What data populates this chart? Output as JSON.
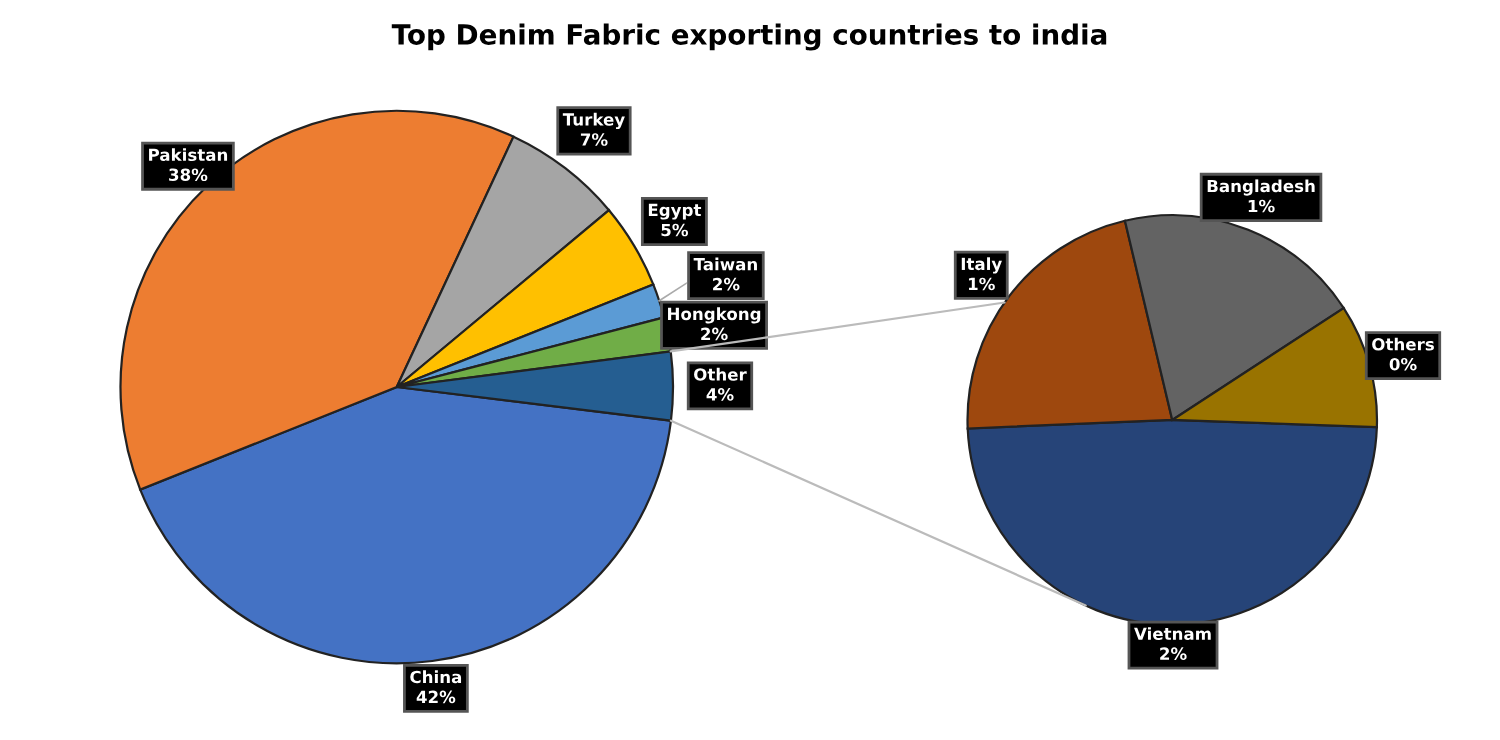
{
  "chart_data": [
    {
      "type": "pie",
      "title": "Top Denim Fabric exporting countries to india",
      "categories": [
        "China",
        "Pakistan",
        "Turkey",
        "Egypt",
        "Taiwan",
        "Hongkong",
        "Other"
      ],
      "values": [
        42,
        38,
        7,
        5,
        2,
        2,
        4
      ],
      "colors": [
        "#4472c4",
        "#ed7d31",
        "#a5a5a5",
        "#ffc000",
        "#5b9bd5",
        "#70ad47",
        "#255e91"
      ],
      "value_labels": [
        "42%",
        "38%",
        "7%",
        "5%",
        "2%",
        "2%",
        "4%"
      ]
    },
    {
      "type": "pie",
      "categories": [
        "Vietnam",
        "Italy",
        "Bangladesh",
        "Others"
      ],
      "values": [
        2.0,
        0.9,
        0.8,
        0.4
      ],
      "value_labels": [
        "2%",
        "1%",
        "1%",
        "0%"
      ],
      "colors": [
        "#264478",
        "#9e480e",
        "#636363",
        "#997300"
      ]
    }
  ]
}
